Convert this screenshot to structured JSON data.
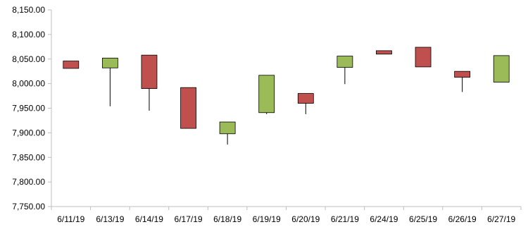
{
  "chart_data": {
    "type": "candlestick",
    "title": "",
    "xlabel": "",
    "ylabel": "",
    "ylim": [
      7750,
      8150
    ],
    "y_ticks": [
      7750,
      7800,
      7850,
      7900,
      7950,
      8000,
      8050,
      8100,
      8150
    ],
    "y_tick_labels": [
      "7,750.00",
      "7,800.00",
      "7,850.00",
      "7,900.00",
      "7,950.00",
      "8,000.00",
      "8,050.00",
      "8,100.00",
      "8,150.00"
    ],
    "grid": false,
    "categories": [
      "6/11/19",
      "6/13/19",
      "6/14/19",
      "6/17/19",
      "6/18/19",
      "6/19/19",
      "6/20/19",
      "6/21/19",
      "6/24/19",
      "6/25/19",
      "6/26/19",
      "6/27/19"
    ],
    "candles": [
      {
        "date": "6/11/19",
        "open": 8046,
        "high": 8046,
        "low": 8031,
        "close": 8031
      },
      {
        "date": "6/13/19",
        "open": 8032,
        "high": 8052,
        "low": 7954,
        "close": 8052
      },
      {
        "date": "6/14/19",
        "open": 8058,
        "high": 8058,
        "low": 7945,
        "close": 7990
      },
      {
        "date": "6/17/19",
        "open": 7992,
        "high": 7992,
        "low": 7909,
        "close": 7909
      },
      {
        "date": "6/18/19",
        "open": 7898,
        "high": 7922,
        "low": 7876,
        "close": 7922
      },
      {
        "date": "6/19/19",
        "open": 7941,
        "high": 8017,
        "low": 7938,
        "close": 8017
      },
      {
        "date": "6/20/19",
        "open": 7980,
        "high": 7980,
        "low": 7938,
        "close": 7960
      },
      {
        "date": "6/21/19",
        "open": 8033,
        "high": 8056,
        "low": 7999,
        "close": 8056
      },
      {
        "date": "6/24/19",
        "open": 8067,
        "high": 8067,
        "low": 8060,
        "close": 8060
      },
      {
        "date": "6/25/19",
        "open": 8074,
        "high": 8074,
        "low": 8034,
        "close": 8034
      },
      {
        "date": "6/26/19",
        "open": 8025,
        "high": 8025,
        "low": 7983,
        "close": 8013
      },
      {
        "date": "6/27/19",
        "open": 8003,
        "high": 8057,
        "low": 8003,
        "close": 8057
      }
    ],
    "colors": {
      "up": "#9bbb59",
      "down": "#c0504d",
      "outline": "#000000",
      "axis": "#bfbfbf"
    }
  }
}
